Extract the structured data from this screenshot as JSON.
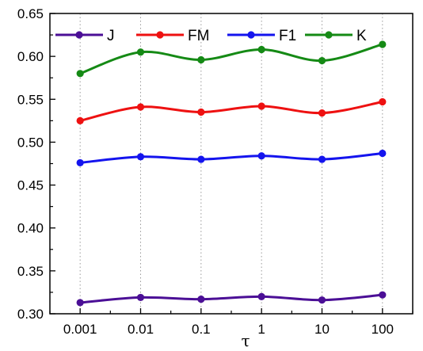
{
  "chart_data": {
    "type": "line",
    "title": "",
    "xlabel": "τ",
    "ylabel": "",
    "categories": [
      "0.001",
      "0.01",
      "0.1",
      "1",
      "10",
      "100"
    ],
    "ylim": [
      0.3,
      0.65
    ],
    "yticks": [
      "0.30",
      "0.35",
      "0.40",
      "0.45",
      "0.50",
      "0.55",
      "0.60",
      "0.65"
    ],
    "grid": "vertical dotted",
    "legend_position": "top",
    "series": [
      {
        "name": "J",
        "color": "#4b0f96",
        "values": [
          0.313,
          0.319,
          0.317,
          0.32,
          0.316,
          0.322
        ]
      },
      {
        "name": "FM",
        "color": "#ee1111",
        "values": [
          0.525,
          0.541,
          0.535,
          0.542,
          0.534,
          0.547
        ]
      },
      {
        "name": "F1",
        "color": "#1414ee",
        "values": [
          0.476,
          0.483,
          0.48,
          0.484,
          0.48,
          0.487
        ]
      },
      {
        "name": "K",
        "color": "#158a15",
        "values": [
          0.58,
          0.605,
          0.596,
          0.608,
          0.595,
          0.614
        ]
      }
    ]
  }
}
